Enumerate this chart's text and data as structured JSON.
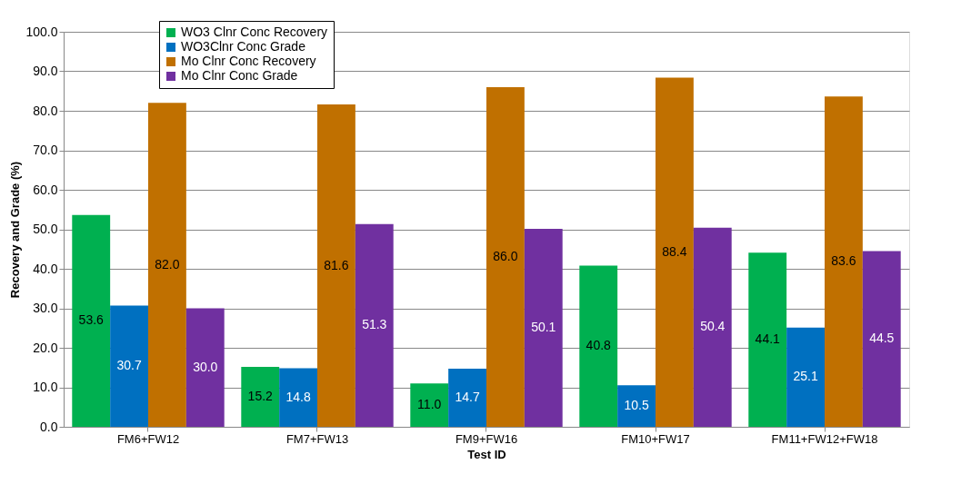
{
  "chart_data": {
    "type": "bar",
    "xlabel": "Test ID",
    "ylabel": "Recovery and Grade (%)",
    "categories": [
      "FM6+FW12",
      "FM7+FW13",
      "FM9+FW16",
      "FM10+FW17",
      "FM11+FW12+FW18"
    ],
    "series": [
      {
        "name": "WO3 Clnr Conc Recovery",
        "color": "#00b050",
        "values": [
          53.6,
          15.2,
          11.0,
          40.8,
          44.1
        ],
        "value_labels": [
          "53.6",
          "15.2",
          "11.0",
          "40.8",
          "44.1"
        ]
      },
      {
        "name": "WO3Clnr Conc Grade",
        "color": "#0070c0",
        "values": [
          30.7,
          14.8,
          14.7,
          10.5,
          25.1
        ],
        "value_labels": [
          "30.7",
          "14.8",
          "14.7",
          "10.5",
          "25.1"
        ]
      },
      {
        "name": "Mo Clnr Conc Recovery",
        "color": "#c07000",
        "values": [
          82.0,
          81.6,
          86.0,
          88.4,
          83.6
        ],
        "value_labels": [
          "82.0",
          "81.6",
          "86.0",
          "88.4",
          "83.6"
        ]
      },
      {
        "name": "Mo Clnr Conc Grade",
        "color": "#7030a0",
        "values": [
          30.0,
          51.3,
          50.1,
          50.4,
          44.5
        ],
        "value_labels": [
          "30.0",
          "51.3",
          "50.1",
          "50.4",
          "44.5"
        ]
      }
    ],
    "ylim": [
      0,
      100
    ],
    "yticks": [
      {
        "value": 0,
        "label": "0.0"
      },
      {
        "value": 10,
        "label": "10.0"
      },
      {
        "value": 20,
        "label": "20.0"
      },
      {
        "value": 30,
        "label": "30.0"
      },
      {
        "value": 40,
        "label": "40.0"
      },
      {
        "value": 50,
        "label": "50.0"
      },
      {
        "value": 60,
        "label": "60.0"
      },
      {
        "value": 70,
        "label": "70.0"
      },
      {
        "value": 80,
        "label": "80.0"
      },
      {
        "value": 90,
        "label": "90.0"
      },
      {
        "value": 100,
        "label": "100.0"
      }
    ],
    "grid": "y",
    "legend": "top left"
  }
}
